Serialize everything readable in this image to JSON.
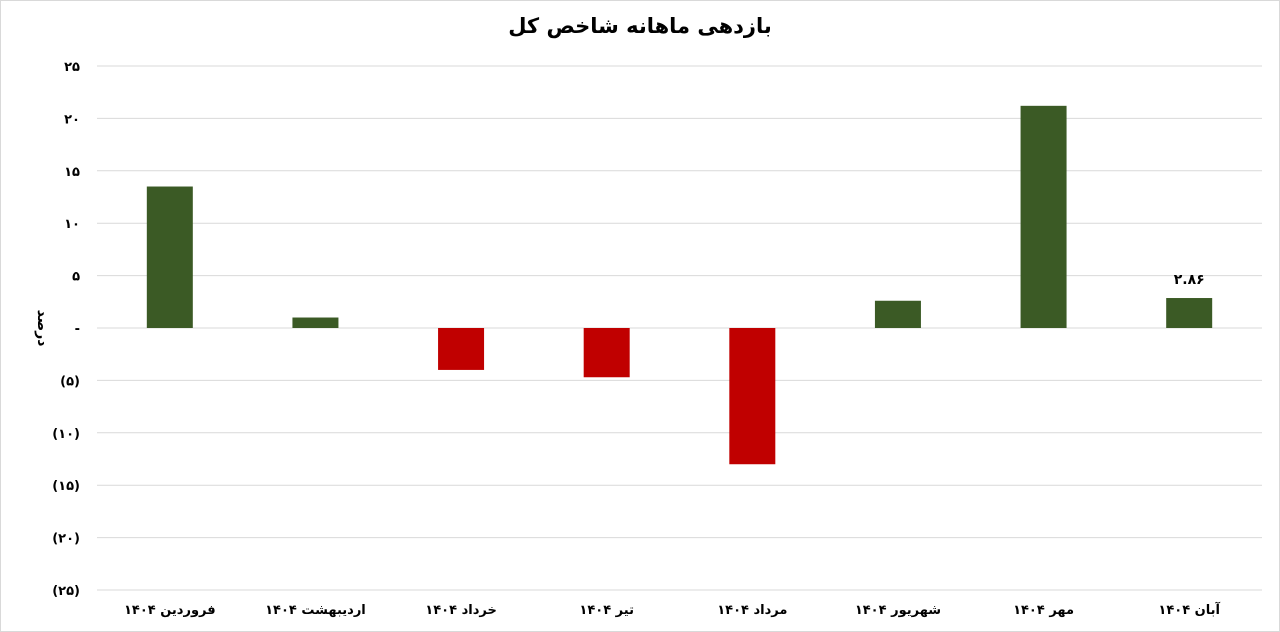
{
  "chart_data": {
    "type": "bar",
    "title": "بازدهی ماهانه شاخص کل",
    "xlabel": "",
    "ylabel": "درصد",
    "categories": [
      "فروردین ۱۴۰۴",
      "اردیبهشت ۱۴۰۴",
      "خرداد ۱۴۰۴",
      "تیر ۱۴۰۴",
      "مرداد ۱۴۰۴",
      "شهریور ۱۴۰۴",
      "مهر ۱۴۰۴",
      "آبان ۱۴۰۴"
    ],
    "values": [
      13.5,
      1.0,
      -4.0,
      -4.7,
      -13.0,
      2.6,
      21.2,
      2.86
    ],
    "data_labels": [
      "",
      "",
      "",
      "",
      "",
      "",
      "",
      "۲.۸۶"
    ],
    "ylim": [
      -25,
      25
    ],
    "y_ticks": [
      25,
      20,
      15,
      10,
      5,
      0,
      -5,
      -10,
      -15,
      -20,
      -25
    ],
    "y_tick_labels": [
      "۲۵",
      "۲۰",
      "۱۵",
      "۱۰",
      "۵",
      "-",
      "(۵)",
      "(۱۰)",
      "(۱۵)",
      "(۲۰)",
      "(۲۵)"
    ],
    "grid": true,
    "legend": "none",
    "colors": {
      "positive": "#3b5a25",
      "negative": "#c00000",
      "gridline": "#d9d9d9",
      "text": "#000000"
    }
  }
}
